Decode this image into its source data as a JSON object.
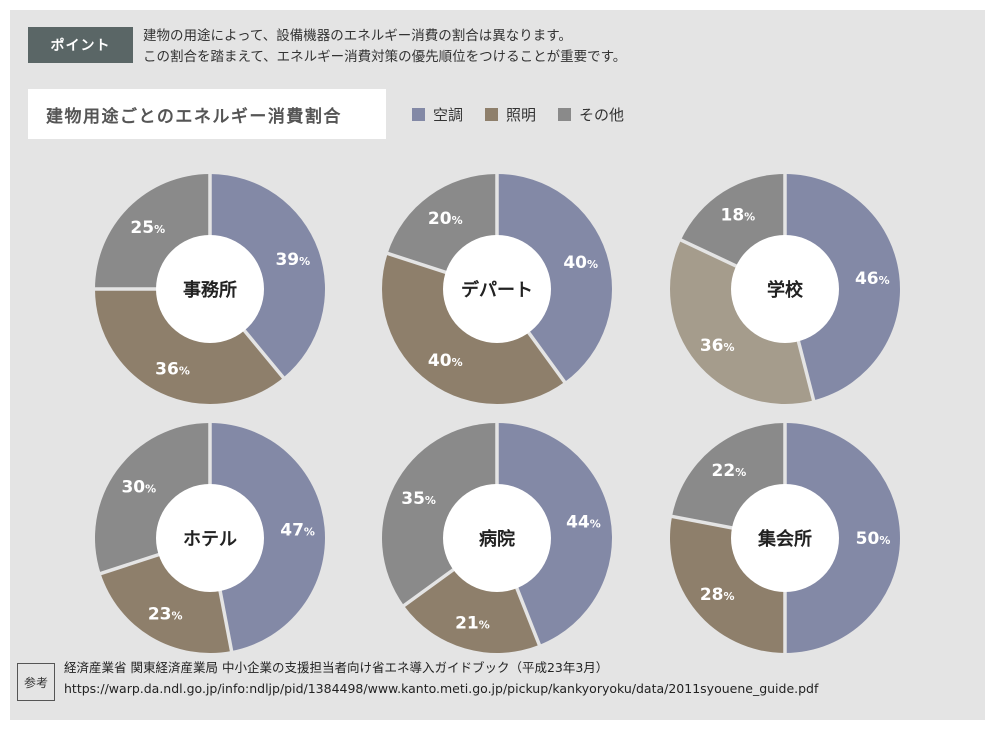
{
  "header": {
    "badge": "ポイント",
    "intro_line1": "建物の用途によって、設備機器のエネルギー消費の割合は異なります。",
    "intro_line2": "この割合を踏まえて、エネルギー消費対策の優先順位をつけることが重要です。"
  },
  "title": "建物用途ごとのエネルギー消費割合",
  "legend": [
    {
      "label": "空調",
      "color": "#8389a6"
    },
    {
      "label": "照明",
      "color": "#8e7f6b"
    },
    {
      "label": "その他",
      "color": "#8a8a8a"
    }
  ],
  "chart_data": [
    {
      "type": "pie",
      "center_label": "事務所",
      "categories": [
        "空調",
        "照明",
        "その他"
      ],
      "values": [
        39,
        36,
        25
      ],
      "colors": [
        "#8389a6",
        "#8e7f6b",
        "#8a8a8a"
      ]
    },
    {
      "type": "pie",
      "center_label": "デパート",
      "categories": [
        "空調",
        "照明",
        "その他"
      ],
      "values": [
        40,
        40,
        20
      ],
      "colors": [
        "#8389a6",
        "#8e7f6b",
        "#8a8a8a"
      ]
    },
    {
      "type": "pie",
      "center_label": "学校",
      "categories": [
        "空調",
        "照明",
        "その他"
      ],
      "values": [
        46,
        36,
        18
      ],
      "colors": [
        "#8389a6",
        "#a59c8c",
        "#8a8a8a"
      ]
    },
    {
      "type": "pie",
      "center_label": "ホテル",
      "categories": [
        "空調",
        "照明",
        "その他"
      ],
      "values": [
        47,
        23,
        30
      ],
      "colors": [
        "#8389a6",
        "#8e7f6b",
        "#8a8a8a"
      ]
    },
    {
      "type": "pie",
      "center_label": "病院",
      "categories": [
        "空調",
        "照明",
        "その他"
      ],
      "values": [
        44,
        21,
        35
      ],
      "colors": [
        "#8389a6",
        "#8e7f6b",
        "#8a8a8a"
      ]
    },
    {
      "type": "pie",
      "center_label": "集会所",
      "categories": [
        "空調",
        "照明",
        "その他"
      ],
      "values": [
        50,
        28,
        22
      ],
      "colors": [
        "#8389a6",
        "#8e7f6b",
        "#8a8a8a"
      ]
    }
  ],
  "reference": {
    "label": "参考",
    "line1": "経済産業省 関東経済産業局 中小企業の支援担当者向け省エネ導入ガイドブック（平成23年3月）",
    "line2": "https://warp.da.ndl.go.jp/info:ndljp/pid/1384498/www.kanto.meti.go.jp/pickup/kankyoryoku/data/2011syouene_guide.pdf"
  }
}
